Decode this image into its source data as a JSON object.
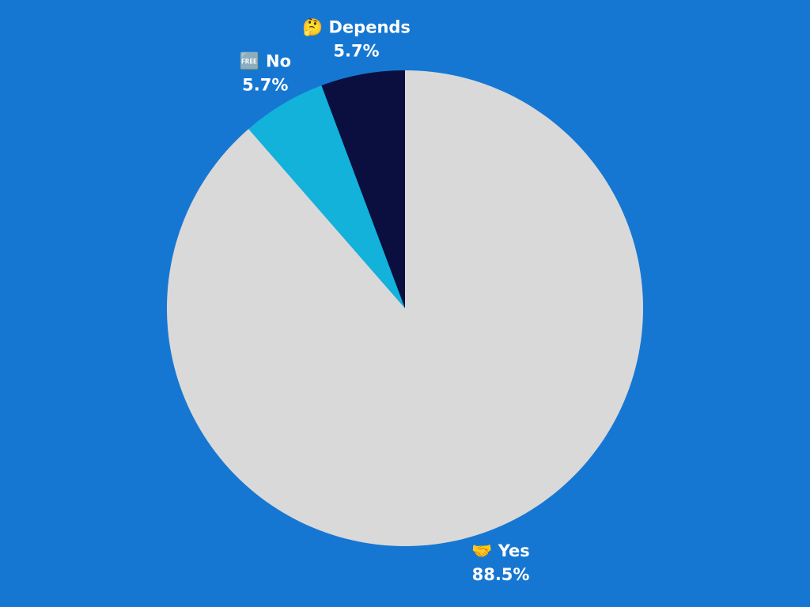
{
  "chart_data": {
    "type": "pie",
    "categories": [
      "🤝 Yes",
      "🆓 No",
      "🤔 Depends"
    ],
    "values": [
      88.5,
      5.7,
      5.7
    ],
    "value_labels": [
      "88.5%",
      "5.7%",
      "5.7%"
    ],
    "colors": [
      "#d9d9d9",
      "#12b2da",
      "#0a0f40"
    ],
    "background": "#1677d2"
  }
}
